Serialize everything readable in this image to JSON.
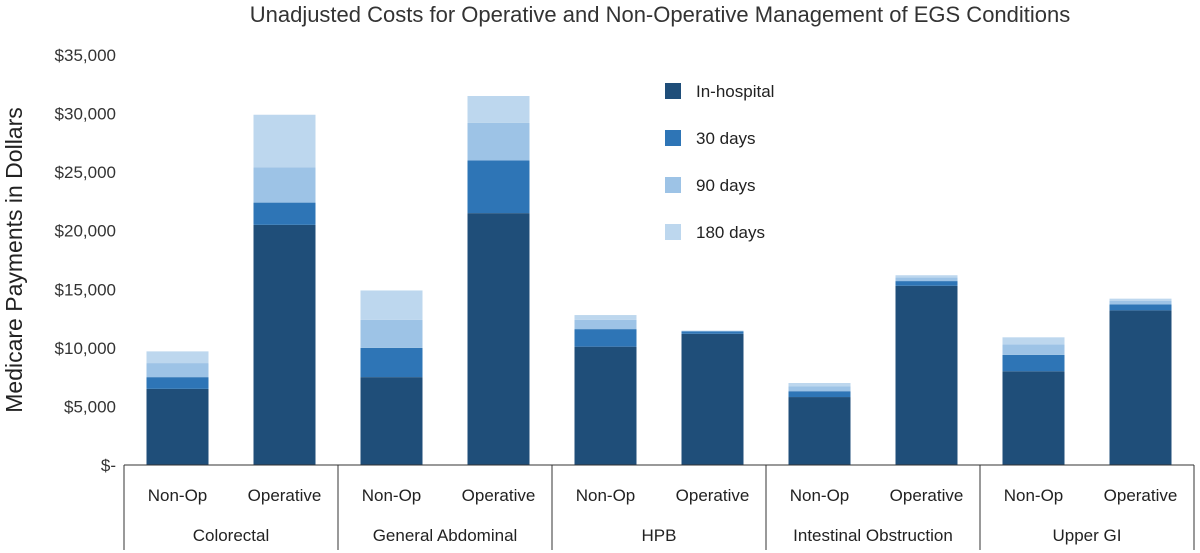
{
  "chart_data": {
    "type": "bar",
    "stacked": true,
    "title": "Unadjusted Costs for Operative and Non-Operative Management of EGS Conditions",
    "ylabel": "Medicare Payments in Dollars",
    "xlabel": "",
    "ylim": [
      0,
      35000
    ],
    "yticks": [
      0,
      5000,
      10000,
      15000,
      20000,
      25000,
      30000,
      35000
    ],
    "ytick_labels": [
      "$-",
      "$5,000",
      "$10,000",
      "$15,000",
      "$20,000",
      "$25,000",
      "$30,000",
      "$35,000"
    ],
    "groups": [
      "Colorectal",
      "General Abdominal",
      "HPB",
      "Intestinal Obstruction",
      "Upper GI"
    ],
    "subcategories": [
      "Non-Op",
      "Operative"
    ],
    "legend_position": "top-center",
    "series": [
      {
        "name": "In-hospital",
        "color": "#1f4e79",
        "values": [
          6500,
          20500,
          7500,
          21500,
          10100,
          11200,
          5800,
          15300,
          8000,
          13200
        ]
      },
      {
        "name": "30 days",
        "color": "#2e75b6",
        "values": [
          1000,
          1900,
          2500,
          4500,
          1500,
          200,
          500,
          400,
          1400,
          500
        ]
      },
      {
        "name": "90 days",
        "color": "#9dc3e6",
        "values": [
          1200,
          3000,
          2400,
          3200,
          800,
          50,
          400,
          300,
          900,
          300
        ]
      },
      {
        "name": "180 days",
        "color": "#bdd7ee",
        "values": [
          1000,
          4500,
          2500,
          2300,
          400,
          30,
          300,
          200,
          600,
          200
        ]
      }
    ]
  }
}
